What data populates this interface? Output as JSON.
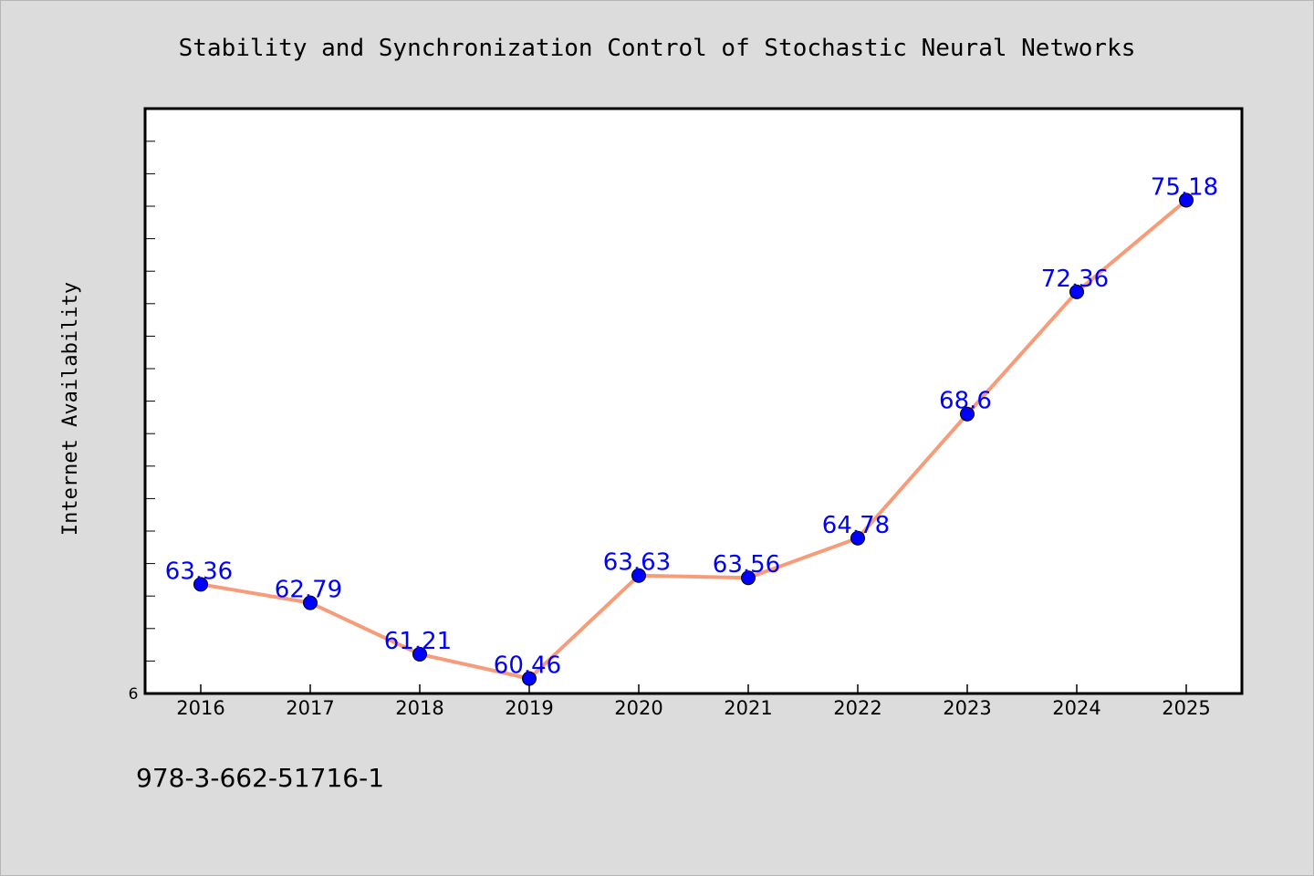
{
  "chart_data": {
    "type": "line",
    "title": "Stability and Synchronization Control of Stochastic Neural Networks",
    "xlabel": "",
    "ylabel": "Internet Availability",
    "categories": [
      "2016",
      "2017",
      "2018",
      "2019",
      "2020",
      "2021",
      "2022",
      "2023",
      "2024",
      "2025"
    ],
    "series": [
      {
        "values": [
          63.36,
          62.79,
          61.21,
          60.46,
          63.63,
          63.56,
          64.78,
          68.6,
          72.36,
          75.18
        ]
      }
    ],
    "data_labels": [
      "63.36",
      "62.79",
      "61.21",
      "60.46",
      "63.63",
      "63.56",
      "64.78",
      "68.6",
      "72.36",
      "75.18"
    ],
    "y_tick_label": "6",
    "ylim": [
      60,
      78
    ],
    "grid": false,
    "line_color": "#f79c7a",
    "marker_color": "#0000ff",
    "label_color": "#0000ff"
  },
  "footer": {
    "isbn": "978-3-662-51716-1"
  }
}
